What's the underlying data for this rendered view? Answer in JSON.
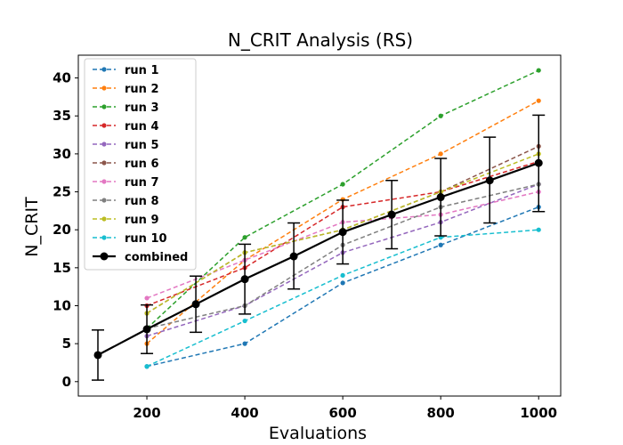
{
  "chart_data": {
    "type": "line",
    "title": "N_CRIT Analysis (RS)",
    "xlabel": "Evaluations",
    "ylabel": "N_CRIT",
    "xlim": [
      60,
      1045
    ],
    "ylim": [
      -1.9,
      43
    ],
    "xticks": [
      200,
      400,
      600,
      800,
      1000
    ],
    "yticks": [
      0,
      5,
      10,
      15,
      20,
      25,
      30,
      35,
      40
    ],
    "grid": false,
    "legend_position": "top-left",
    "series": [
      {
        "name": "run 1",
        "color": "#1f77b4",
        "style": "dashed",
        "x": [
          200,
          400,
          600,
          800,
          1000
        ],
        "y": [
          2,
          5,
          13,
          18,
          23
        ]
      },
      {
        "name": "run 2",
        "color": "#ff7f0e",
        "style": "dashed",
        "x": [
          200,
          400,
          600,
          800,
          1000
        ],
        "y": [
          5,
          16,
          24,
          30,
          37
        ]
      },
      {
        "name": "run 3",
        "color": "#2ca02c",
        "style": "dashed",
        "x": [
          200,
          400,
          600,
          800,
          1000
        ],
        "y": [
          7,
          19,
          26,
          35,
          41
        ]
      },
      {
        "name": "run 4",
        "color": "#d62728",
        "style": "dashed",
        "x": [
          200,
          400,
          600,
          800,
          1000
        ],
        "y": [
          10,
          15,
          23,
          25,
          29
        ]
      },
      {
        "name": "run 5",
        "color": "#9467bd",
        "style": "dashed",
        "x": [
          200,
          400,
          600,
          800,
          1000
        ],
        "y": [
          6,
          10,
          17,
          21,
          26
        ]
      },
      {
        "name": "run 6",
        "color": "#8c564b",
        "style": "dashed",
        "x": [
          200,
          400,
          600,
          800,
          1000
        ],
        "y": [
          9,
          17,
          20,
          25,
          31
        ]
      },
      {
        "name": "run 7",
        "color": "#e377c2",
        "style": "dashed",
        "x": [
          200,
          400,
          600,
          800,
          1000
        ],
        "y": [
          11,
          16,
          21,
          22,
          25
        ]
      },
      {
        "name": "run 8",
        "color": "#7f7f7f",
        "style": "dashed",
        "x": [
          200,
          400,
          600,
          800,
          1000
        ],
        "y": [
          7,
          10,
          18,
          23,
          26
        ]
      },
      {
        "name": "run 9",
        "color": "#bcbd22",
        "style": "dashed",
        "x": [
          200,
          400,
          600,
          800,
          1000
        ],
        "y": [
          9,
          17,
          20,
          25,
          30
        ]
      },
      {
        "name": "run 10",
        "color": "#17becf",
        "style": "dashed",
        "x": [
          200,
          400,
          600,
          800,
          1000
        ],
        "y": [
          2,
          8,
          14,
          19,
          20
        ]
      },
      {
        "name": "combined",
        "color": "#000000",
        "style": "solid",
        "x": [
          100,
          200,
          300,
          400,
          500,
          600,
          700,
          800,
          900,
          1000
        ],
        "y": [
          3.5,
          6.9,
          10.2,
          13.5,
          16.5,
          19.7,
          22.0,
          24.3,
          26.5,
          28.8
        ],
        "err_low": [
          0.2,
          3.7,
          6.5,
          8.9,
          12.2,
          15.5,
          17.5,
          19.2,
          20.9,
          22.4
        ],
        "err_high": [
          6.8,
          10.1,
          13.9,
          18.1,
          20.9,
          23.9,
          26.5,
          29.4,
          32.2,
          35.1
        ]
      }
    ]
  }
}
